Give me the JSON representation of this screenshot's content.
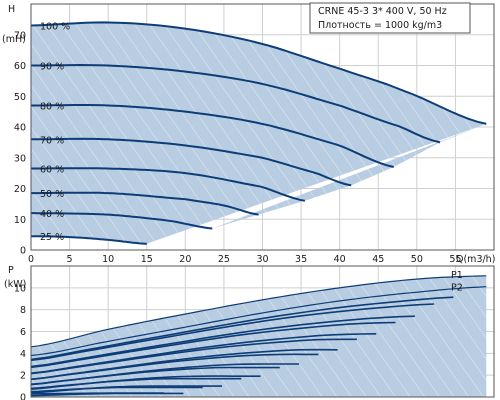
{
  "colors": {
    "curve": "#0d3d78",
    "envelope_fill": "#b9cde2",
    "hatch": "#ffffff",
    "grid": "#cfcfcf"
  },
  "info": {
    "line1": "CRNE 45-3    3* 400 V, 50 Hz",
    "line2": "Плотность = 1000 kg/m3"
  },
  "chart_data": [
    {
      "type": "line",
      "panel": "head",
      "ylabel": "H",
      "yunit": "(mH)",
      "xlabel": "Q(m3/h)",
      "xlim": [
        0,
        60
      ],
      "ylim": [
        0,
        80
      ],
      "xticks": [
        0,
        5,
        10,
        15,
        20,
        25,
        30,
        35,
        40,
        45,
        50,
        55
      ],
      "yticks": [
        0,
        10,
        20,
        30,
        40,
        50,
        60,
        70
      ],
      "grid": true,
      "series": [
        {
          "name": "100 %",
          "x": [
            0,
            10,
            20,
            30,
            40,
            48,
            59
          ],
          "y": [
            73,
            74,
            72,
            67,
            59,
            52,
            41
          ]
        },
        {
          "name": "90 %",
          "x": [
            0,
            10,
            20,
            30,
            40,
            48,
            53
          ],
          "y": [
            60,
            60,
            58,
            54,
            47,
            40,
            35
          ]
        },
        {
          "name": "80 %",
          "x": [
            0,
            10,
            20,
            30,
            40,
            47
          ],
          "y": [
            47,
            47,
            45,
            41,
            34,
            27
          ]
        },
        {
          "name": "70 %",
          "x": [
            0,
            10,
            20,
            30,
            37,
            41.5
          ],
          "y": [
            36,
            36,
            34,
            30,
            25,
            21
          ]
        },
        {
          "name": "60 %",
          "x": [
            0,
            10,
            20,
            30,
            35.5
          ],
          "y": [
            26.5,
            26.5,
            25,
            20.5,
            16
          ]
        },
        {
          "name": "50 %",
          "x": [
            0,
            10,
            20,
            25,
            29.5
          ],
          "y": [
            18.5,
            18.5,
            16.5,
            14.5,
            11.5
          ]
        },
        {
          "name": "40 %",
          "x": [
            0,
            10,
            18,
            23.5
          ],
          "y": [
            12,
            11.5,
            9.5,
            7
          ]
        },
        {
          "name": "25 %",
          "x": [
            0,
            5,
            10,
            15
          ],
          "y": [
            4.5,
            4.2,
            3.3,
            2
          ]
        }
      ]
    },
    {
      "type": "area",
      "panel": "power",
      "ylabel": "P",
      "yunit": "(kW)",
      "xlim": [
        0,
        60
      ],
      "ylim": [
        0,
        12
      ],
      "yticks": [
        0,
        2,
        4,
        6,
        8,
        10
      ],
      "grid": true,
      "series": [
        {
          "name": "P1",
          "x": [
            0,
            10,
            20,
            30,
            40,
            50,
            59
          ],
          "y": [
            4.6,
            6.2,
            7.6,
            8.9,
            10.0,
            10.8,
            11.1
          ]
        },
        {
          "name": "P2",
          "x": [
            0,
            10,
            20,
            30,
            40,
            50,
            59
          ],
          "y": [
            3.8,
            5.1,
            6.4,
            7.7,
            8.8,
            9.6,
            10.1
          ]
        }
      ],
      "inner_curves_count": 16
    }
  ]
}
